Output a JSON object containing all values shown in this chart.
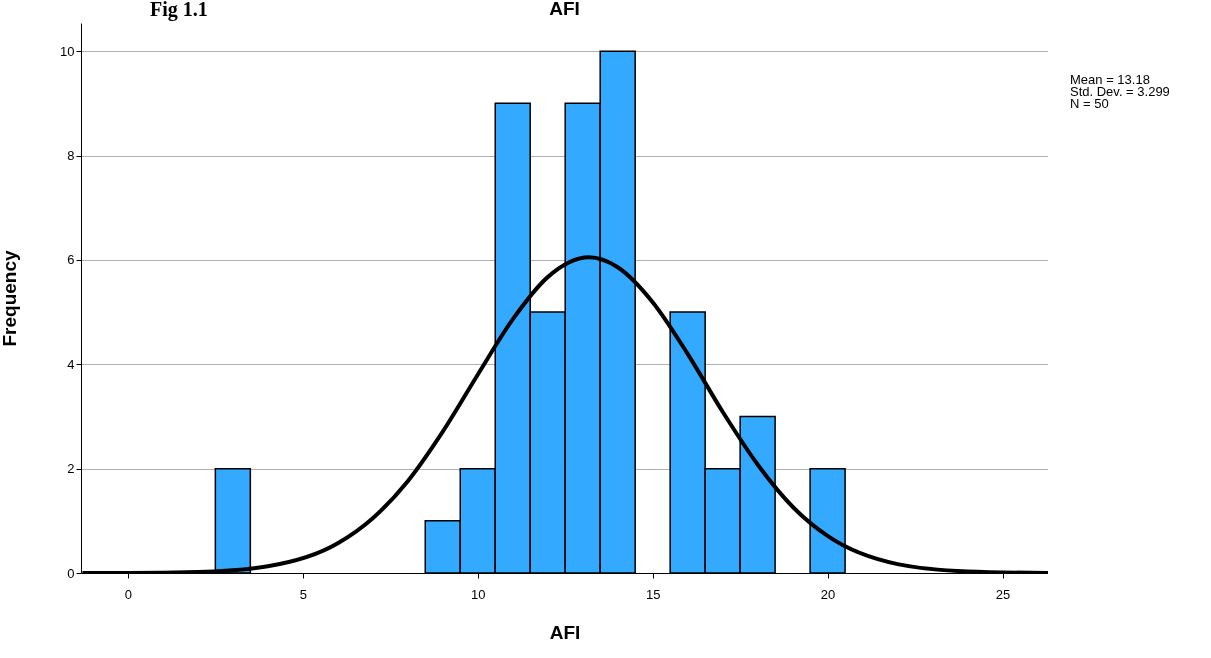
{
  "chart_data": {
    "type": "histogram",
    "title": "AFI",
    "xlabel": "AFI",
    "ylabel": "Frequency",
    "annotations": [
      "Fig 1.1",
      "Mean = 13.18\nStd. Dev. = 3.299\nN = 50"
    ],
    "bins": [
      2.5,
      3.5,
      4.5,
      5.5,
      6.5,
      7.5,
      8.5,
      9.5,
      10.5,
      11.5,
      12.5,
      13.5,
      14.5,
      15.5,
      16.5,
      17.5,
      18.5,
      19.5,
      20.5
    ],
    "series": [
      {
        "type": "histogram",
        "color": "#33aaff",
        "values": [
          2,
          0,
          0,
          0,
          0,
          0,
          1,
          2,
          9,
          5,
          9,
          10,
          0,
          5,
          2,
          3,
          0,
          2
        ]
      },
      {
        "type": "line",
        "color": "#000000",
        "x": [
          -1.3,
          0,
          2,
          4,
          6,
          7,
          8,
          9,
          10,
          11,
          12,
          13.18,
          14,
          15,
          16,
          17,
          18,
          19,
          20,
          22,
          24,
          26.3
        ],
        "values": [
          0,
          0,
          0.02,
          0.13,
          0.57,
          1.05,
          1.76,
          2.71,
          3.8,
          4.86,
          5.67,
          6.05,
          5.86,
          5.19,
          4.2,
          3.09,
          2.08,
          1.27,
          0.71,
          0.17,
          0.03,
          0
        ]
      }
    ],
    "xlim": [
      -1.34,
      26.3
    ],
    "ylim": [
      0,
      10.54
    ],
    "xticks": [
      0,
      5,
      10,
      15,
      20,
      25
    ],
    "yticks": [
      0,
      2,
      4,
      6,
      8,
      10
    ],
    "grid": "y"
  }
}
